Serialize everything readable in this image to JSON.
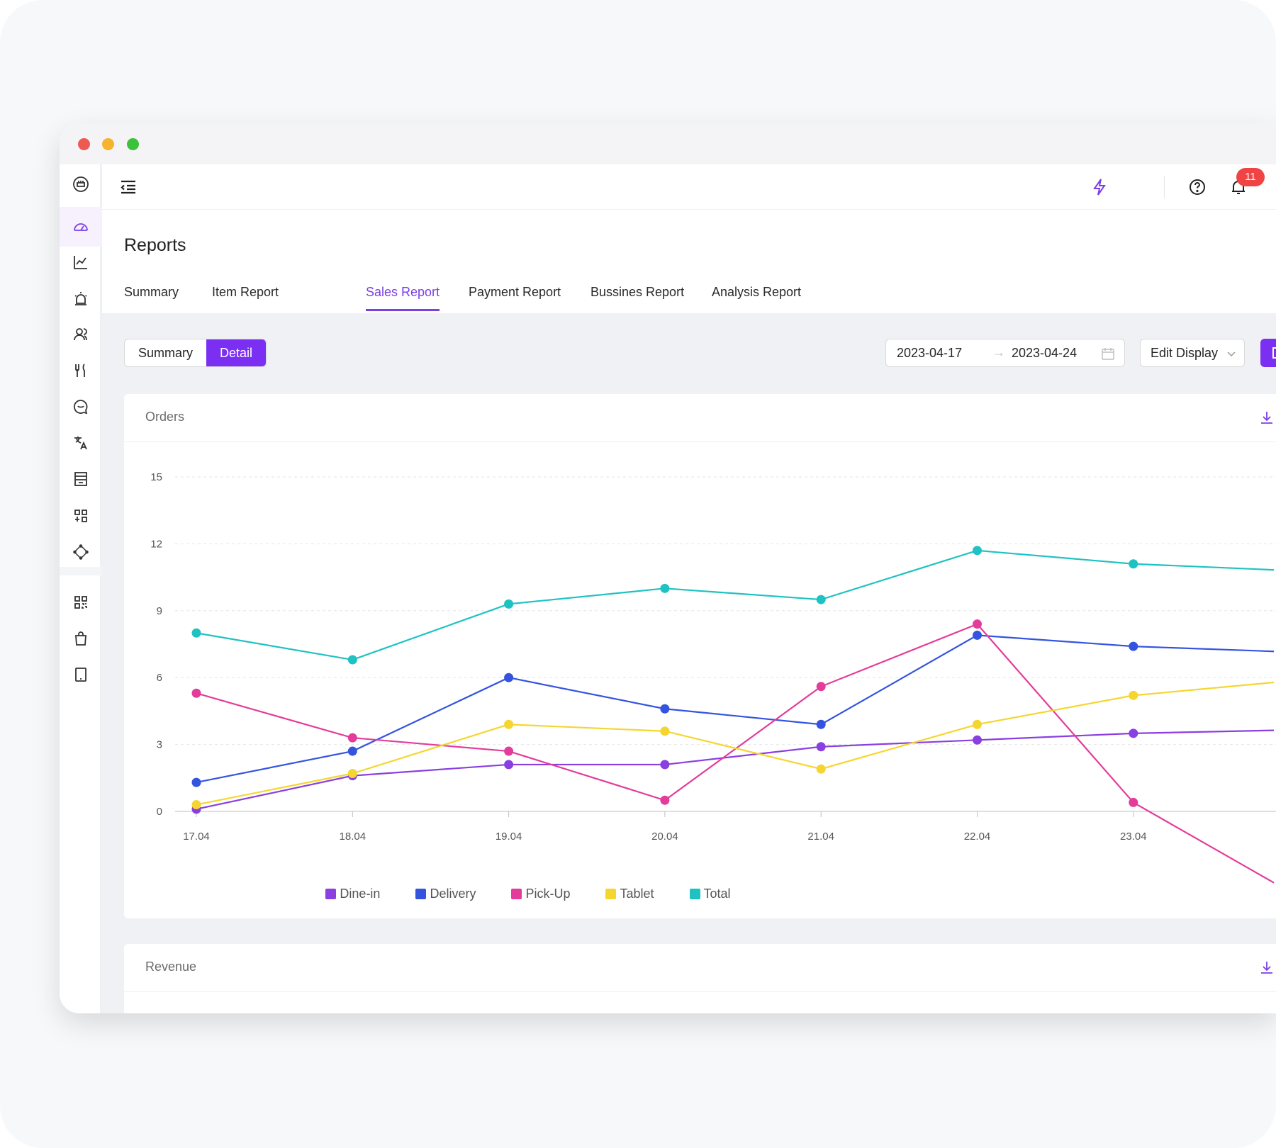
{
  "header": {
    "notification_count": "11"
  },
  "page": {
    "title": "Reports",
    "tabs": [
      {
        "label": "Summary"
      },
      {
        "label": "Item Report"
      },
      {
        "label": "Sales Report",
        "active": true
      },
      {
        "label": "Payment Report"
      },
      {
        "label": "Bussines Report"
      },
      {
        "label": "Analysis Report"
      }
    ]
  },
  "toolbar": {
    "view_toggle": [
      {
        "label": "Summary"
      },
      {
        "label": "Detail",
        "active": true
      }
    ],
    "date_start": "2023-04-17",
    "date_end": "2023-04-24",
    "date_separator": "→",
    "edit_display_label": "Edit Display"
  },
  "sidebar": {
    "icons": [
      "store-icon",
      "dashboard-icon",
      "chart-line-icon",
      "alarm-icon",
      "users-icon",
      "utensils-icon",
      "chat-icon",
      "translate-icon",
      "shop-icon",
      "apps-icon",
      "integration-icon",
      "qr-code-icon",
      "shopping-bag-icon",
      "tablet-icon"
    ],
    "active_index": 1
  },
  "cards": {
    "orders_title": "Orders",
    "revenue_title": "Revenue"
  },
  "colors": {
    "accent": "#7b2ff2",
    "dine_in": "#8a3fe0",
    "delivery": "#3454e0",
    "pick_up": "#e33c9a",
    "tablet": "#f5d630",
    "total": "#1fc2c2"
  },
  "chart_data": {
    "type": "line",
    "title": "Orders",
    "x": [
      "17.04",
      "18.04",
      "19.04",
      "20.04",
      "21.04",
      "22.04",
      "23.04"
    ],
    "ylim": [
      0,
      15
    ],
    "yticks": [
      0,
      3,
      6,
      9,
      12,
      15
    ],
    "grid": true,
    "legend_position": "bottom",
    "series": [
      {
        "name": "Dine-in",
        "color": "#8a3fe0",
        "values": [
          0.1,
          1.6,
          2.1,
          2.1,
          2.9,
          3.2,
          3.5
        ]
      },
      {
        "name": "Delivery",
        "color": "#3454e0",
        "values": [
          1.3,
          2.7,
          6.0,
          4.6,
          3.9,
          7.9,
          7.4
        ]
      },
      {
        "name": "Pick-Up",
        "color": "#e33c9a",
        "values": [
          5.3,
          3.3,
          2.7,
          0.5,
          5.6,
          8.4,
          0.4
        ]
      },
      {
        "name": "Tablet",
        "color": "#f5d630",
        "values": [
          0.3,
          1.7,
          3.9,
          3.6,
          1.9,
          3.9,
          5.2
        ]
      },
      {
        "name": "Total",
        "color": "#1fc2c2",
        "values": [
          8.0,
          6.8,
          9.3,
          10.0,
          9.5,
          11.7,
          11.1
        ]
      }
    ]
  }
}
